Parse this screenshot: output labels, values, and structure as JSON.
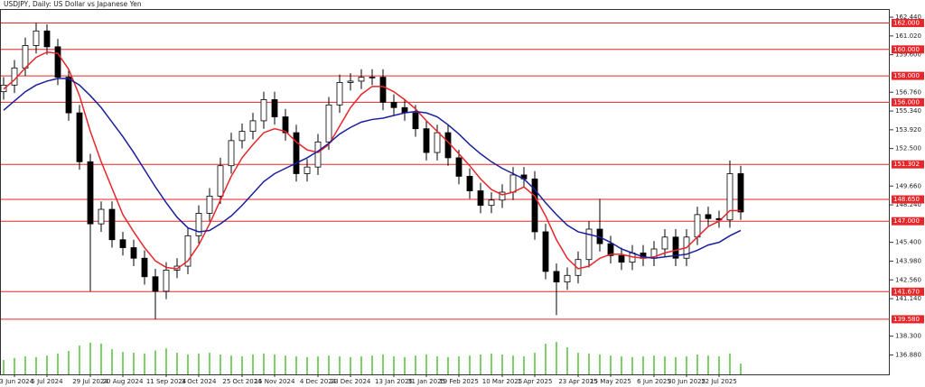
{
  "chart_data": {
    "type": "candlestick",
    "title": "USDJPY, Daily:  US Dollar vs Japanese Yen",
    "categories": [
      null,
      "13 Jun 2024",
      null,
      null,
      "5 Jul 2024",
      null,
      null,
      null,
      "29 Jul 2024",
      null,
      null,
      "20 Aug 2024",
      null,
      null,
      null,
      "11 Sep 2024",
      null,
      null,
      "3 Oct 2024",
      null,
      null,
      null,
      "25 Oct 2024",
      null,
      null,
      "15 Nov 2024",
      null,
      null,
      null,
      "4 Dec 2024",
      null,
      null,
      "23 Dec 2024",
      null,
      null,
      null,
      "13 Jan 2025",
      null,
      null,
      "31 Jan 2025",
      null,
      null,
      "19 Feb 2025",
      null,
      null,
      null,
      "10 Mar 2025",
      null,
      null,
      "1 Apr 2025",
      null,
      null,
      null,
      "23 Apr 2025",
      null,
      null,
      "15 May 2025",
      null,
      null,
      null,
      "6 Jun 2025",
      null,
      null,
      "30 Jun 2025",
      null,
      null,
      "22 Jul 2025",
      null,
      null
    ],
    "open": [
      156.8,
      157.3,
      158.6,
      160.3,
      161.4,
      160.2,
      157.9,
      155.2,
      151.5,
      146.8,
      147.9,
      145.6,
      145.0,
      144.2,
      142.8,
      141.7,
      143.3,
      143.6,
      145.9,
      147.6,
      148.9,
      151.2,
      153.1,
      153.8,
      154.6,
      156.2,
      154.9,
      153.7,
      150.6,
      151.1,
      153.0,
      155.8,
      157.5,
      157.6,
      157.9,
      157.9,
      156.0,
      155.6,
      155.2,
      154.0,
      152.2,
      153.7,
      151.8,
      150.4,
      149.3,
      148.2,
      148.6,
      149.2,
      150.5,
      150.2,
      146.2,
      143.2,
      142.4,
      142.9,
      144.1,
      146.4,
      145.3,
      144.4,
      143.9,
      144.6,
      144.2,
      144.9,
      145.8,
      144.2,
      145.8,
      147.5,
      147.2,
      147.1,
      150.6
    ],
    "high": [
      157.9,
      159.2,
      160.9,
      162.0,
      161.9,
      160.8,
      158.5,
      155.8,
      152.1,
      148.5,
      148.5,
      146.2,
      145.6,
      144.8,
      143.4,
      143.9,
      144.2,
      146.5,
      148.2,
      149.5,
      151.8,
      153.7,
      154.4,
      155.2,
      156.8,
      156.8,
      155.5,
      154.3,
      151.7,
      153.6,
      156.4,
      158.1,
      158.2,
      158.5,
      158.5,
      158.5,
      156.6,
      156.2,
      155.8,
      154.6,
      154.3,
      154.3,
      152.4,
      151.0,
      149.9,
      149.2,
      149.8,
      151.1,
      151.1,
      150.8,
      146.8,
      143.8,
      143.5,
      144.7,
      147.0,
      148.7,
      145.9,
      145.0,
      145.2,
      145.2,
      145.5,
      146.4,
      146.4,
      146.4,
      148.1,
      148.1,
      147.8,
      151.6,
      151.2
    ],
    "low": [
      156.2,
      156.7,
      158.0,
      159.7,
      159.6,
      157.3,
      154.6,
      150.9,
      141.7,
      146.2,
      145.0,
      144.4,
      143.6,
      142.2,
      139.6,
      141.1,
      142.7,
      143.0,
      145.3,
      147.0,
      148.3,
      150.6,
      152.5,
      153.2,
      154.0,
      154.3,
      153.1,
      150.0,
      150.0,
      150.5,
      152.4,
      155.2,
      156.9,
      157.0,
      157.3,
      155.4,
      155.0,
      154.6,
      153.4,
      151.6,
      151.6,
      151.2,
      149.8,
      148.7,
      147.6,
      147.6,
      148.0,
      148.6,
      149.6,
      145.6,
      142.6,
      139.9,
      141.8,
      142.3,
      143.5,
      144.7,
      143.8,
      143.3,
      143.3,
      143.6,
      143.6,
      144.3,
      143.6,
      143.6,
      145.2,
      146.6,
      146.5,
      146.5,
      147.1
    ],
    "close": [
      157.3,
      158.6,
      160.3,
      161.4,
      160.2,
      157.9,
      155.2,
      151.5,
      146.8,
      147.9,
      145.6,
      145.0,
      144.2,
      142.8,
      141.7,
      143.3,
      143.6,
      145.9,
      147.6,
      148.9,
      151.2,
      153.1,
      153.8,
      154.6,
      156.2,
      154.9,
      153.7,
      150.6,
      151.1,
      153.0,
      155.8,
      157.5,
      157.6,
      157.9,
      157.9,
      156.0,
      155.6,
      155.2,
      154.0,
      152.2,
      153.7,
      151.8,
      150.4,
      149.3,
      148.2,
      148.6,
      149.2,
      150.5,
      150.2,
      146.2,
      143.2,
      142.4,
      142.9,
      144.1,
      146.4,
      145.3,
      144.4,
      143.9,
      144.6,
      144.2,
      144.9,
      145.8,
      144.2,
      145.8,
      147.5,
      147.2,
      147.1,
      150.6,
      147.7
    ],
    "volume": [
      40,
      45,
      50,
      48,
      52,
      58,
      65,
      80,
      88,
      85,
      70,
      62,
      60,
      58,
      66,
      72,
      60,
      55,
      58,
      60,
      55,
      52,
      50,
      55,
      58,
      55,
      52,
      50,
      48,
      50,
      52,
      50,
      48,
      50,
      52,
      55,
      50,
      48,
      52,
      55,
      50,
      48,
      50,
      52,
      55,
      58,
      55,
      52,
      50,
      60,
      85,
      90,
      75,
      60,
      58,
      55,
      52,
      50,
      48,
      50,
      52,
      50,
      48,
      50,
      55,
      52,
      50,
      58,
      30
    ],
    "volume_color": "#7ccf6a",
    "vlim": [
      0,
      100
    ],
    "moving_averages": [
      {
        "color": "#e8262a",
        "values": [
          157.0,
          157.7,
          158.6,
          159.4,
          159.8,
          159.7,
          158.5,
          156.5,
          153.8,
          151.5,
          149.5,
          147.5,
          146.2,
          145.0,
          144.0,
          143.5,
          143.4,
          144.0,
          145.2,
          146.8,
          148.6,
          150.4,
          151.8,
          152.8,
          153.7,
          154.0,
          153.8,
          153.0,
          152.4,
          152.2,
          152.8,
          154.2,
          155.6,
          156.6,
          157.2,
          157.2,
          156.8,
          156.2,
          155.5,
          154.6,
          153.8,
          153.0,
          152.1,
          151.2,
          150.2,
          149.4,
          149.0,
          149.2,
          149.6,
          148.9,
          147.4,
          145.6,
          144.2,
          143.4,
          143.6,
          144.2,
          144.5,
          144.5,
          144.3,
          144.2,
          144.3,
          144.6,
          144.8,
          145.0,
          145.8,
          146.6,
          147.0,
          147.8,
          147.8
        ]
      },
      {
        "color": "#1a1f9a",
        "values": [
          155.4,
          156.1,
          156.8,
          157.3,
          157.6,
          157.8,
          157.8,
          157.3,
          156.5,
          155.6,
          154.5,
          153.4,
          152.2,
          150.9,
          149.6,
          148.4,
          147.3,
          146.5,
          146.2,
          146.3,
          146.8,
          147.4,
          148.2,
          149.1,
          150.0,
          150.6,
          151.0,
          151.4,
          151.8,
          152.3,
          152.9,
          153.6,
          154.1,
          154.5,
          154.7,
          154.8,
          155.0,
          155.2,
          155.3,
          155.2,
          154.9,
          154.3,
          153.6,
          152.8,
          152.1,
          151.5,
          151.0,
          150.6,
          150.2,
          149.4,
          148.4,
          147.5,
          146.7,
          146.2,
          146.0,
          145.8,
          145.4,
          144.9,
          144.6,
          144.3,
          144.2,
          144.3,
          144.4,
          144.5,
          144.8,
          145.2,
          145.4,
          145.9,
          146.3
        ]
      }
    ],
    "ylim": [
      135.41,
      162.99
    ],
    "yticks": [
      {
        "value": 162.44,
        "label": "162.440"
      },
      {
        "value": 161.02,
        "label": "161.020"
      },
      {
        "value": 159.6,
        "label": "159.600"
      },
      {
        "value": 156.76,
        "label": "156.760"
      },
      {
        "value": 155.34,
        "label": "155.340"
      },
      {
        "value": 153.92,
        "label": "153.920"
      },
      {
        "value": 152.5,
        "label": "152.500"
      },
      {
        "value": 149.66,
        "label": "149.660"
      },
      {
        "value": 148.24,
        "label": "148.240"
      },
      {
        "value": 145.4,
        "label": "145.400"
      },
      {
        "value": 143.98,
        "label": "143.980"
      },
      {
        "value": 142.56,
        "label": "142.560"
      },
      {
        "value": 141.14,
        "label": "141.140"
      },
      {
        "value": 138.3,
        "label": "138.300"
      },
      {
        "value": 136.88,
        "label": "136.880"
      }
    ],
    "levels": [
      {
        "value": 162,
        "label": "162.000"
      },
      {
        "value": 160,
        "label": "160.000"
      },
      {
        "value": 158,
        "label": "158.000"
      },
      {
        "value": 156,
        "label": "156.000"
      },
      151.302,
      {
        "value": 148.65,
        "label": "148.650"
      },
      {
        "value": 147,
        "label": "147.000"
      },
      {
        "value": 141.67,
        "label": "141.670"
      },
      {
        "value": 139.58,
        "label": "139.580"
      }
    ],
    "level_color": "#e8262a"
  }
}
